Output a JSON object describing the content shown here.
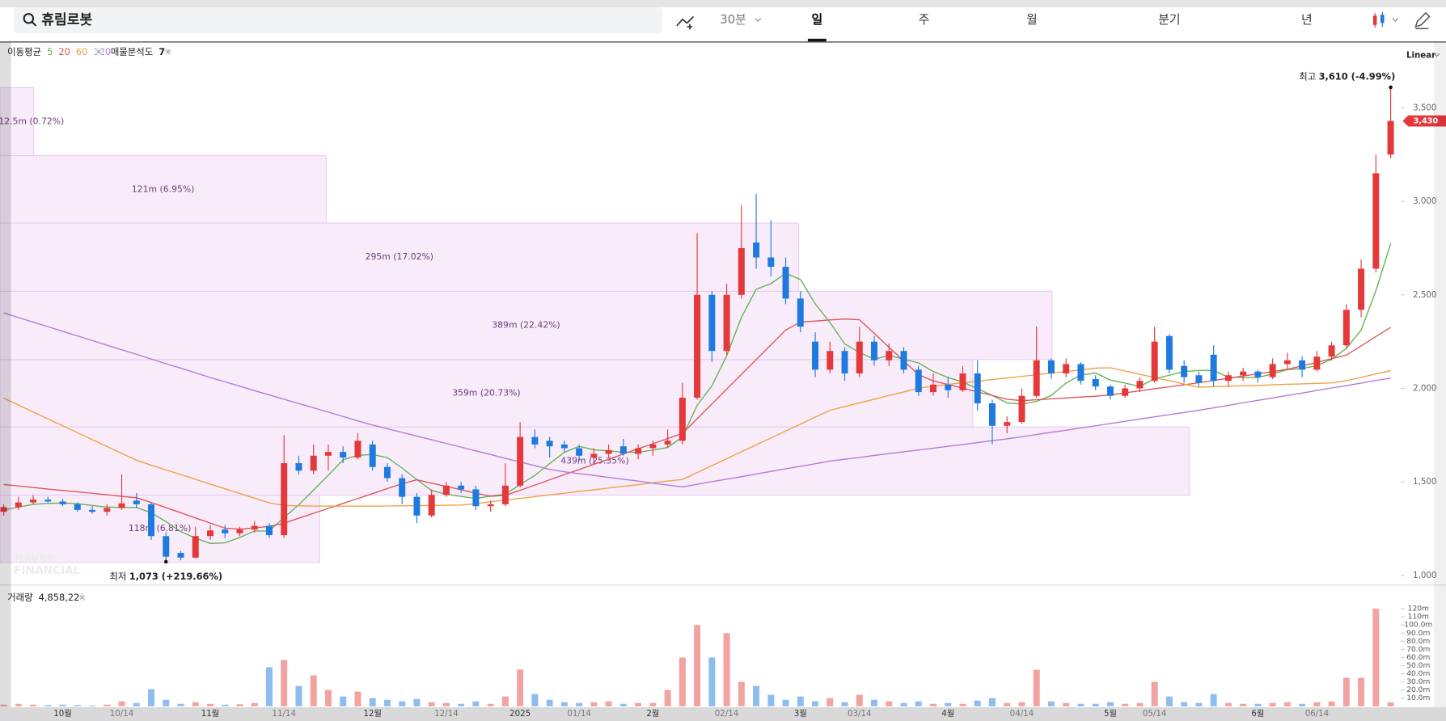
{
  "toolbar": {
    "search_query": "휴림로봇",
    "intervals": [
      "30분",
      "일",
      "주",
      "월",
      "분기",
      "년"
    ],
    "selected": 1
  },
  "price_scale_mode": "Linear",
  "watermark": [
    "NAVER",
    "FINANCIAL"
  ],
  "chart_data": [
    {
      "type": "candlestick",
      "legend_title": "이동평균",
      "categories": [
        null,
        null,
        null,
        null,
        "10월",
        null,
        null,
        null,
        "10/14",
        null,
        null,
        null,
        null,
        null,
        "11월",
        null,
        null,
        null,
        null,
        "11/14",
        null,
        null,
        null,
        null,
        null,
        "12월",
        null,
        null,
        null,
        null,
        "12/14",
        null,
        null,
        null,
        null,
        "2025",
        null,
        null,
        null,
        "01/14",
        null,
        null,
        null,
        null,
        "2월",
        null,
        null,
        null,
        null,
        "02/14",
        null,
        null,
        null,
        null,
        "3월",
        null,
        null,
        null,
        "03/14",
        null,
        null,
        null,
        null,
        null,
        "4월",
        null,
        null,
        null,
        null,
        "04/14",
        null,
        null,
        null,
        null,
        null,
        "5월",
        null,
        null,
        "05/14",
        null,
        null,
        null,
        null,
        null,
        null,
        "6월",
        null,
        null,
        null,
        "06/14",
        null,
        null,
        null,
        null,
        null
      ],
      "open": [
        1340,
        1365,
        1390,
        1405,
        1395,
        1380,
        1350,
        1340,
        1360,
        1400,
        1380,
        1210,
        1120,
        1095,
        1210,
        1245,
        1225,
        1245,
        1265,
        1215,
        1600,
        1560,
        1640,
        1660,
        1630,
        1700,
        1580,
        1520,
        1420,
        1320,
        1430,
        1480,
        1460,
        1370,
        1380,
        1480,
        1740,
        1720,
        1700,
        1680,
        1630,
        1650,
        1690,
        1650,
        1680,
        1700,
        1720,
        1950,
        2500,
        2200,
        2500,
        2780,
        2700,
        2650,
        2480,
        2250,
        2100,
        2200,
        2080,
        2250,
        2150,
        2200,
        2100,
        1980,
        2020,
        1990,
        2080,
        1920,
        1800,
        1820,
        1960,
        2150,
        2080,
        2130,
        2050,
        2010,
        1960,
        2000,
        2040,
        2280,
        2120,
        2070,
        2180,
        2040,
        2070,
        2090,
        2060,
        2130,
        2150,
        2100,
        2170,
        2230,
        2420,
        2640,
        3250
      ],
      "high": [
        1380,
        1420,
        1430,
        1420,
        1410,
        1390,
        1370,
        1380,
        1540,
        1440,
        1390,
        1230,
        1130,
        1260,
        1270,
        1270,
        1260,
        1290,
        1280,
        1750,
        1640,
        1700,
        1700,
        1690,
        1760,
        1720,
        1600,
        1540,
        1440,
        1460,
        1500,
        1500,
        1480,
        1400,
        1600,
        1820,
        1780,
        1740,
        1720,
        1700,
        1680,
        1700,
        1730,
        1700,
        1720,
        1780,
        2030,
        2830,
        2520,
        2560,
        2980,
        3040,
        2900,
        2700,
        2520,
        2300,
        2250,
        2220,
        2330,
        2280,
        2240,
        2220,
        2120,
        2080,
        2060,
        2120,
        2150,
        1940,
        1850,
        2000,
        2330,
        2160,
        2160,
        2140,
        2070,
        2020,
        2020,
        2060,
        2330,
        2290,
        2150,
        2090,
        2230,
        2090,
        2110,
        2100,
        2160,
        2190,
        2170,
        2200,
        2250,
        2450,
        2690,
        3250,
        3610
      ],
      "low": [
        1320,
        1350,
        1380,
        1390,
        1370,
        1340,
        1330,
        1320,
        1350,
        1360,
        1190,
        1073,
        1080,
        1090,
        1190,
        1200,
        1210,
        1230,
        1200,
        1200,
        1540,
        1540,
        1560,
        1600,
        1620,
        1560,
        1500,
        1380,
        1280,
        1310,
        1420,
        1440,
        1350,
        1340,
        1370,
        1470,
        1680,
        1630,
        1660,
        1610,
        1600,
        1630,
        1640,
        1620,
        1640,
        1680,
        1700,
        1940,
        2140,
        2180,
        2480,
        2640,
        2600,
        2450,
        2300,
        2060,
        2080,
        2040,
        2060,
        2120,
        2120,
        2080,
        1960,
        1960,
        1950,
        1980,
        1880,
        1700,
        1760,
        1810,
        1950,
        2050,
        2060,
        2020,
        1990,
        1940,
        1950,
        1980,
        2030,
        2080,
        2030,
        2010,
        2010,
        2010,
        2040,
        2030,
        2050,
        2100,
        2060,
        2090,
        2150,
        2210,
        2380,
        2620,
        3230
      ],
      "close": [
        1365,
        1390,
        1405,
        1395,
        1380,
        1350,
        1340,
        1360,
        1385,
        1380,
        1210,
        1100,
        1095,
        1210,
        1240,
        1225,
        1245,
        1265,
        1215,
        1600,
        1560,
        1640,
        1660,
        1630,
        1720,
        1580,
        1520,
        1420,
        1320,
        1430,
        1480,
        1460,
        1370,
        1380,
        1480,
        1740,
        1700,
        1690,
        1680,
        1640,
        1650,
        1670,
        1650,
        1680,
        1700,
        1720,
        1950,
        2500,
        2200,
        2500,
        2750,
        2700,
        2650,
        2480,
        2330,
        2100,
        2200,
        2080,
        2250,
        2150,
        2200,
        2100,
        1980,
        2020,
        1990,
        2080,
        1920,
        1800,
        1820,
        1960,
        2150,
        2080,
        2130,
        2040,
        2010,
        1960,
        2000,
        2040,
        2250,
        2100,
        2060,
        2030,
        2040,
        2070,
        2090,
        2060,
        2130,
        2150,
        2100,
        2170,
        2230,
        2420,
        2640,
        3150,
        3430
      ],
      "up_color": "#e5383b",
      "down_color": "#1f7ae0",
      "ylim": [
        951,
        3845
      ],
      "yticks": [
        {
          "value": 1000,
          "label": "1,000"
        },
        {
          "value": 1500,
          "label": "1,500"
        },
        {
          "value": 2000,
          "label": "2,000"
        },
        {
          "value": 2500,
          "label": "2,500"
        },
        {
          "value": 3000,
          "label": "3,000"
        },
        {
          "value": 3500,
          "label": "3,500"
        }
      ],
      "series": [
        {
          "name": "5",
          "color": "#62b34f",
          "values": [
            1350,
            1365,
            1380,
            1385,
            1387,
            1384,
            1374,
            1365,
            1363,
            1363,
            1335,
            1287,
            1234,
            1199,
            1171,
            1174,
            1203,
            1237,
            1238,
            1310,
            1377,
            1456,
            1535,
            1618,
            1642,
            1646,
            1630,
            1574,
            1512,
            1454,
            1434,
            1422,
            1412,
            1424,
            1434,
            1486,
            1534,
            1598,
            1658,
            1690,
            1672,
            1666,
            1658,
            1658,
            1670,
            1684,
            1740,
            1910,
            2014,
            2174,
            2380,
            2530,
            2560,
            2616,
            2582,
            2452,
            2352,
            2238,
            2192,
            2156,
            2176,
            2156,
            2136,
            2090,
            2058,
            2034,
            1998,
            1962,
            1922,
            1916,
            1930,
            1962,
            2028,
            2072,
            2082,
            2044,
            2028,
            2010,
            2052,
            2070,
            2090,
            2096,
            2096,
            2060,
            2058,
            2058,
            2078,
            2100,
            2106,
            2122,
            2156,
            2214,
            2312,
            2522,
            2774
          ]
        },
        {
          "name": "20",
          "color": "#e05555",
          "values": [
            1486,
            1478,
            1470,
            1462,
            1454,
            1447,
            1439,
            1431,
            1423,
            1415,
            1390,
            1362,
            1335,
            1307,
            1280,
            1252,
            1247,
            1254,
            1262,
            1279,
            1306,
            1332,
            1358,
            1385,
            1411,
            1437,
            1464,
            1490,
            1511,
            1493,
            1476,
            1458,
            1440,
            1423,
            1428,
            1455,
            1483,
            1511,
            1539,
            1566,
            1594,
            1621,
            1649,
            1677,
            1704,
            1732,
            1759,
            1838,
            1917,
            1996,
            2075,
            2154,
            2233,
            2312,
            2354,
            2360,
            2366,
            2371,
            2367,
            2294,
            2220,
            2147,
            2073,
            2040,
            2021,
            2001,
            1981,
            1962,
            1942,
            1934,
            1939,
            1944,
            1949,
            1954,
            1958,
            1965,
            1976,
            1987,
            1998,
            2008,
            2019,
            2030,
            2042,
            2054,
            2066,
            2078,
            2090,
            2102,
            2120,
            2139,
            2159,
            2178,
            2227,
            2277,
            2326
          ]
        },
        {
          "name": "60",
          "color": "#f0a040",
          "values": [
            1948,
            1911,
            1874,
            1837,
            1800,
            1763,
            1726,
            1689,
            1652,
            1616,
            1589,
            1564,
            1539,
            1514,
            1488,
            1463,
            1438,
            1413,
            1388,
            1374,
            1372,
            1371,
            1370,
            1370,
            1370,
            1370,
            1371,
            1372,
            1373,
            1374,
            1375,
            1376,
            1384,
            1393,
            1403,
            1412,
            1421,
            1430,
            1439,
            1449,
            1458,
            1467,
            1476,
            1485,
            1495,
            1504,
            1513,
            1550,
            1587,
            1624,
            1661,
            1698,
            1735,
            1772,
            1809,
            1846,
            1883,
            1903,
            1922,
            1942,
            1962,
            1981,
            2001,
            2012,
            2021,
            2030,
            2038,
            2047,
            2056,
            2064,
            2073,
            2082,
            2090,
            2099,
            2108,
            2110,
            2093,
            2075,
            2058,
            2041,
            2023,
            2006,
            2009,
            2011,
            2014,
            2016,
            2019,
            2022,
            2024,
            2027,
            2029,
            2041,
            2059,
            2077,
            2095
          ]
        },
        {
          "name": "120",
          "color": "#b27ad8",
          "values": [
            2404,
            2379,
            2354,
            2330,
            2305,
            2280,
            2256,
            2231,
            2206,
            2182,
            2157,
            2132,
            2108,
            2083,
            2058,
            2035,
            2012,
            1988,
            1965,
            1942,
            1919,
            1896,
            1873,
            1850,
            1826,
            1804,
            1784,
            1765,
            1745,
            1725,
            1705,
            1686,
            1666,
            1646,
            1626,
            1606,
            1587,
            1567,
            1554,
            1544,
            1534,
            1524,
            1514,
            1504,
            1493,
            1483,
            1473,
            1487,
            1501,
            1514,
            1528,
            1542,
            1556,
            1570,
            1583,
            1597,
            1611,
            1621,
            1631,
            1641,
            1651,
            1661,
            1671,
            1680,
            1690,
            1700,
            1710,
            1720,
            1730,
            1741,
            1753,
            1765,
            1776,
            1788,
            1800,
            1812,
            1824,
            1836,
            1848,
            1859,
            1871,
            1883,
            1896,
            1909,
            1923,
            1936,
            1949,
            1962,
            1975,
            1989,
            2002,
            2015,
            2028,
            2042,
            2055
          ]
        }
      ],
      "volume_profile": {
        "title": "매물분석도",
        "count": 7,
        "color": "#f3ddf8",
        "bins": [
          1069,
          1429,
          1794,
          2154,
          2519,
          2884,
          3244,
          3608
        ],
        "values": [
          6.81,
          25.35,
          20.73,
          22.42,
          17.02,
          6.95,
          0.72
        ],
        "value_labels": [
          "118m (6.81%)",
          "439m (25.35%)",
          "359m (20.73%)",
          "389m (22.42%)",
          "295m (17.02%)",
          "121m (6.95%)",
          "12.5m (0.72%)"
        ]
      },
      "annotations": [
        {
          "label": "최고",
          "value": 3610,
          "value_label": "3,610 (-4.99%)"
        },
        {
          "label": "최저",
          "value": 1073,
          "value_label": "1,073 (+219.66%)"
        }
      ],
      "last_price": {
        "value": 3430,
        "label": "3,430"
      }
    },
    {
      "type": "bar",
      "title": "거래량",
      "last_value": 4858221,
      "last_value_label": "4,858,221",
      "up_color": "#f3a2a2",
      "down_color": "#8dbdf0",
      "values": [
        2,
        3,
        2,
        1.5,
        2,
        1.5,
        1,
        2,
        6,
        4,
        21,
        8,
        3,
        5,
        3,
        2,
        2.5,
        4,
        48,
        57,
        25,
        38,
        20,
        12,
        18,
        10,
        8,
        6,
        9,
        5,
        4,
        3,
        6,
        3,
        12,
        45,
        15,
        8,
        5,
        4,
        5,
        6,
        3,
        4,
        4,
        20,
        60,
        100,
        60,
        90,
        30,
        25,
        14,
        8,
        12,
        6,
        10,
        5,
        14,
        8,
        6,
        4,
        6,
        3,
        4,
        3,
        7,
        10,
        4,
        5,
        45,
        6,
        4,
        3,
        3,
        5,
        3,
        4,
        30,
        12,
        5,
        4,
        15,
        4,
        3,
        3,
        4,
        5,
        3,
        5,
        6,
        35,
        35,
        120,
        4.858221
      ],
      "ylim": [
        0,
        143
      ],
      "yticks": [
        {
          "value": 10,
          "label": "10.0m"
        },
        {
          "value": 20,
          "label": "20.0m"
        },
        {
          "value": 30,
          "label": "30.0m"
        },
        {
          "value": 40,
          "label": "40.0m"
        },
        {
          "value": 50,
          "label": "50.0m"
        },
        {
          "value": 60,
          "label": "60.0m"
        },
        {
          "value": 70,
          "label": "70.0m"
        },
        {
          "value": 80,
          "label": "80.0m"
        },
        {
          "value": 90,
          "label": "90.0m"
        },
        {
          "value": 100,
          "label": "100.0m"
        },
        {
          "value": 110,
          "label": "110m"
        },
        {
          "value": 120,
          "label": "120m"
        }
      ]
    }
  ]
}
